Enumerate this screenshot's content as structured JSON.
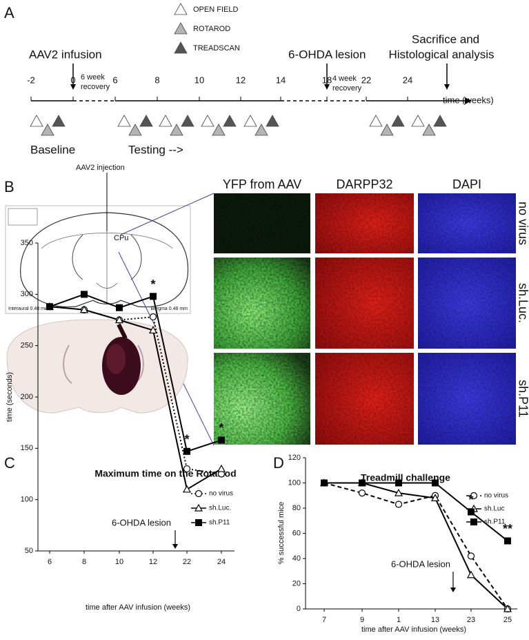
{
  "panel_a": {
    "label": "A",
    "legend": [
      "OPEN FIELD",
      "ROTAROD",
      "TREADSCAN"
    ],
    "infusion": "AAV2 infusion",
    "recovery_1": [
      "6 week",
      "recovery"
    ],
    "lesion": "6-OHDA lesion",
    "recovery_2": [
      "4 week",
      "recovery"
    ],
    "sacrifice": [
      "Sacrifice and",
      "Histological analysis"
    ],
    "timeline_ticks": [
      -2,
      0,
      6,
      8,
      10,
      12,
      14,
      18,
      22,
      24
    ],
    "axis_label": "time (weeks)",
    "phases": [
      "Baseline",
      "Testing -->"
    ]
  },
  "panel_b": {
    "label": "B",
    "injection": "AAV2 injection",
    "region": "CPu",
    "atlas_notes": [
      "Interaural 0.48 mm",
      "Bregma 0.48 mm"
    ],
    "columns": [
      "YFP from AAV",
      "DARPP32",
      "DAPI"
    ],
    "rows": [
      "no virus",
      "sh.Luc.",
      "sh.P11"
    ]
  },
  "chart_data": [
    {
      "type": "line",
      "panel_label": "C",
      "title": "Maximum time on the RotaRod",
      "y_label": "time (seconds)",
      "x_label": "time after AAV infusion (weeks)",
      "categories": [
        "6",
        "8",
        "10",
        "12",
        "22",
        "24"
      ],
      "ylim": [
        50,
        350
      ],
      "yticks": [
        50,
        100,
        150,
        200,
        250,
        300,
        350
      ],
      "series": [
        {
          "name": "no virus",
          "color": "#000000",
          "line_style": "dotted",
          "marker": "circle-open",
          "values": [
            288,
            285,
            275,
            278,
            130,
            125
          ]
        },
        {
          "name": "sh.Luc.",
          "color": "#000000",
          "line_style": "solid",
          "marker": "triangle-open",
          "values": [
            288,
            285,
            275,
            265,
            110,
            130
          ]
        },
        {
          "name": "sh.P11",
          "color": "#000000",
          "line_style": "solid",
          "marker": "square-filled",
          "values": [
            288,
            300,
            287,
            298,
            147,
            158
          ]
        }
      ],
      "annotations": [
        {
          "text": "*",
          "category": "12"
        },
        {
          "text": "*",
          "category": "22"
        },
        {
          "text": "*",
          "category": "24"
        }
      ],
      "event_label": "6-OHDA lesion"
    },
    {
      "type": "line",
      "panel_label": "D",
      "title": "Treadmill challenge",
      "y_label": "% successful mice",
      "x_label": "time after AAV infusion (weeks)",
      "categories": [
        "7",
        "9",
        "1",
        "13",
        "23",
        "25"
      ],
      "ylim": [
        0,
        120
      ],
      "yticks": [
        0,
        20,
        40,
        60,
        80,
        100,
        120
      ],
      "series": [
        {
          "name": "no virus",
          "color": "#000000",
          "line_style": "dashed",
          "marker": "circle-open",
          "values": [
            100,
            92,
            83,
            90,
            42,
            0
          ]
        },
        {
          "name": "sh.Luc",
          "color": "#000000",
          "line_style": "solid",
          "marker": "triangle-open",
          "values": [
            100,
            100,
            92,
            88,
            27,
            0
          ]
        },
        {
          "name": "sh.P11",
          "color": "#000000",
          "line_style": "solid",
          "marker": "square-filled",
          "values": [
            100,
            100,
            100,
            100,
            77,
            54
          ]
        }
      ],
      "annotations": [
        {
          "text": "*",
          "category": "23"
        },
        {
          "text": "**",
          "category": "25"
        }
      ],
      "event_label": "6-OHDA lesion"
    }
  ]
}
